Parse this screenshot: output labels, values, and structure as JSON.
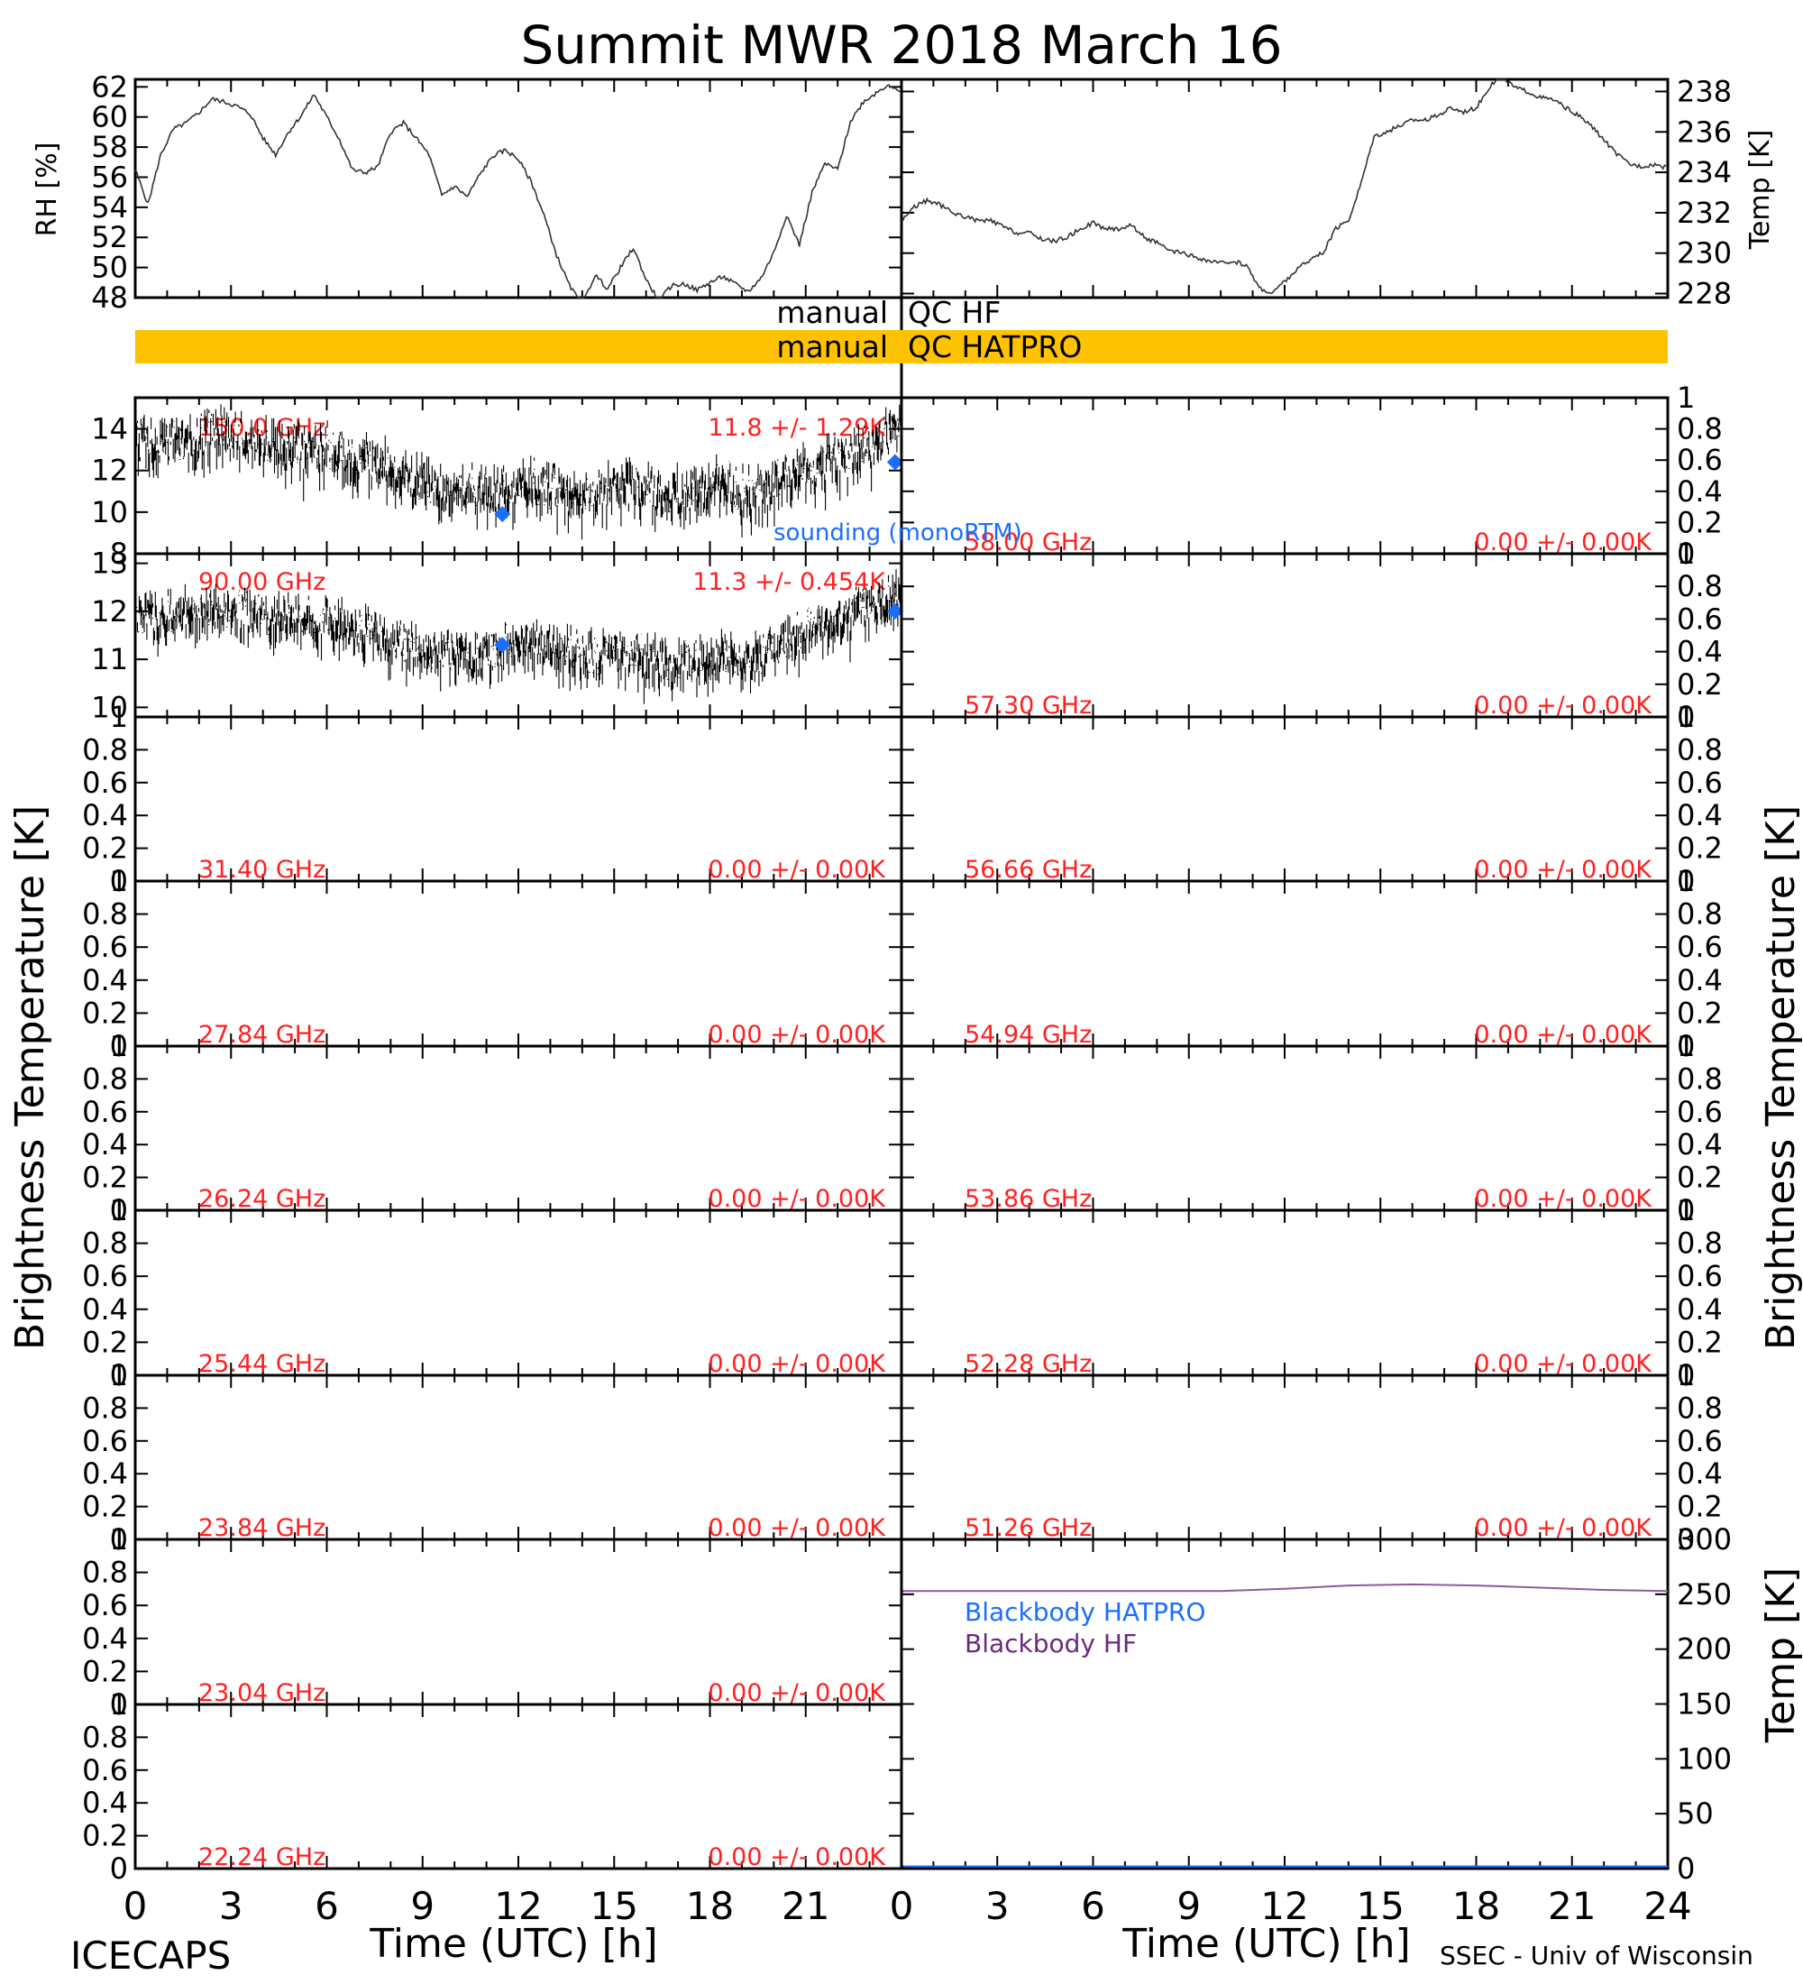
{
  "title": "Summit MWR 2018 March 16",
  "footer": {
    "left": "ICECAPS",
    "right": "SSEC - Univ of Wisconsin"
  },
  "axis_labels": {
    "time": "Time (UTC) [h]",
    "brightness": "Brightness Temperature [K]",
    "rh": "RH [%]",
    "temp": "Temp [K]"
  },
  "qc": {
    "label": "manual",
    "hf": "QC HF",
    "hatpro": "QC HATPRO"
  },
  "legend": {
    "sounding": "sounding (monoRTM)",
    "bb_hatpro": "Blackbody HATPRO",
    "bb_hf": "Blackbody HF"
  },
  "colors": {
    "label_red": "#ff2020",
    "sounding_blue": "#1a6eff",
    "qc_bar": "#ffc200",
    "bb_hf": "#8e5a9e",
    "bb_hatpro": "#1a6eff"
  },
  "chart_data": [
    {
      "type": "line",
      "id": "rh",
      "ylabel": "RH [%]",
      "xlim": [
        0,
        24
      ],
      "ylim": [
        48,
        62.5
      ],
      "yticks": [
        48,
        50,
        52,
        54,
        56,
        58,
        60,
        62
      ],
      "x": [
        0,
        0.4,
        0.8,
        1.2,
        1.6,
        2.0,
        2.4,
        2.8,
        3.2,
        3.6,
        4.0,
        4.4,
        4.8,
        5.2,
        5.6,
        6.0,
        6.4,
        6.8,
        7.2,
        7.6,
        8.0,
        8.4,
        8.8,
        9.2,
        9.6,
        10.0,
        10.4,
        10.8,
        11.2,
        11.6,
        12.0,
        12.4,
        12.8,
        13.2,
        13.6,
        14.0,
        14.4,
        14.8,
        15.2,
        15.6,
        16.0,
        16.4,
        16.8,
        17.2,
        17.6,
        18.0,
        18.4,
        18.8,
        19.2,
        19.6,
        20.0,
        20.4,
        20.8,
        21.2,
        21.6,
        22.0,
        22.4,
        22.8,
        23.2,
        23.6,
        24.0
      ],
      "y": [
        56.5,
        54.2,
        57.5,
        59.2,
        59.6,
        60.3,
        61.2,
        61.0,
        60.7,
        60.2,
        58.6,
        57.5,
        59.0,
        60.1,
        61.5,
        60.0,
        58.5,
        56.5,
        56.3,
        56.7,
        59.0,
        59.6,
        58.6,
        57.5,
        54.8,
        55.4,
        54.7,
        56.2,
        57.4,
        57.8,
        57.2,
        55.7,
        53.5,
        50.8,
        48.8,
        47.5,
        49.5,
        48.6,
        50.0,
        51.3,
        49.2,
        47.8,
        48.8,
        48.9,
        48.5,
        49.0,
        49.4,
        48.9,
        48.4,
        49.3,
        51.0,
        53.5,
        51.5,
        55.0,
        56.9,
        56.5,
        59.7,
        61.0,
        61.6,
        62.2,
        61.5
      ]
    },
    {
      "type": "line",
      "id": "air_temp",
      "ylabel": "Temp [K]",
      "xlim": [
        0,
        24
      ],
      "ylim": [
        227.8,
        238.6
      ],
      "yticks": [
        228,
        230,
        232,
        234,
        236,
        238
      ],
      "x": [
        0,
        0.4,
        0.8,
        1.2,
        1.6,
        2.0,
        2.4,
        2.8,
        3.2,
        3.6,
        4.0,
        4.4,
        4.8,
        5.2,
        5.6,
        6.0,
        6.4,
        6.8,
        7.2,
        7.6,
        8.0,
        8.4,
        8.8,
        9.2,
        9.6,
        10.0,
        10.4,
        10.8,
        11.2,
        11.6,
        12.0,
        12.4,
        12.8,
        13.2,
        13.6,
        14.0,
        14.4,
        14.8,
        15.2,
        15.6,
        16.0,
        16.4,
        16.8,
        17.2,
        17.6,
        18.0,
        18.4,
        18.8,
        19.2,
        19.6,
        20.0,
        20.4,
        20.8,
        21.2,
        21.6,
        22.0,
        22.4,
        22.8,
        23.2,
        23.6,
        24.0
      ],
      "y": [
        231.6,
        232.3,
        232.6,
        232.4,
        232.0,
        231.8,
        231.6,
        231.6,
        231.3,
        231.0,
        231.0,
        230.7,
        230.6,
        230.8,
        231.2,
        231.5,
        231.2,
        231.2,
        231.4,
        230.8,
        230.5,
        230.1,
        230.0,
        229.8,
        229.6,
        229.5,
        229.6,
        229.4,
        228.3,
        228.0,
        228.6,
        229.2,
        229.7,
        230.0,
        231.2,
        231.6,
        233.5,
        235.8,
        236.0,
        236.3,
        236.6,
        236.6,
        236.8,
        237.2,
        237.0,
        237.2,
        238.2,
        238.8,
        238.2,
        238.0,
        237.7,
        237.6,
        237.2,
        236.8,
        236.3,
        235.6,
        234.9,
        234.4,
        234.3,
        234.4,
        234.2
      ]
    },
    {
      "type": "scatter",
      "id": "tb_150",
      "freq": "150.0 GHz",
      "stat": "11.8 +/- 1.29K",
      "xlim": [
        0,
        24
      ],
      "ylim": [
        8,
        15.5
      ],
      "yticks": [
        8,
        10,
        12,
        14
      ],
      "x": [
        0,
        0.8,
        1.6,
        2.4,
        3.2,
        4.0,
        4.8,
        5.6,
        6.4,
        7.2,
        8.0,
        8.8,
        9.6,
        10.4,
        11.2,
        12.0,
        12.8,
        13.6,
        14.4,
        15.2,
        16.0,
        16.8,
        17.6,
        18.4,
        19.2,
        20.0,
        20.8,
        21.6,
        22.4,
        23.2,
        24.0
      ],
      "y": [
        13.2,
        13.5,
        13.4,
        13.6,
        13.8,
        13.2,
        13.0,
        12.9,
        12.7,
        12.5,
        12.0,
        11.4,
        11.0,
        10.9,
        11.0,
        11.3,
        11.1,
        10.9,
        10.8,
        11.3,
        11.1,
        10.8,
        11.0,
        11.3,
        10.7,
        11.2,
        11.8,
        12.2,
        12.6,
        13.3,
        14.0
      ],
      "spread": 0.9,
      "sounding": {
        "x": [
          11.5,
          23.8
        ],
        "y": [
          9.9,
          12.4
        ]
      }
    },
    {
      "type": "scatter",
      "id": "tb_90",
      "freq": "90.00 GHz",
      "stat": "11.3 +/- 0.454K",
      "xlim": [
        0,
        24
      ],
      "ylim": [
        9.8,
        13.2
      ],
      "yticks": [
        10,
        11,
        12,
        13
      ],
      "x": [
        0,
        0.8,
        1.6,
        2.4,
        3.2,
        4.0,
        4.8,
        5.6,
        6.4,
        7.2,
        8.0,
        8.8,
        9.6,
        10.4,
        11.2,
        12.0,
        12.8,
        13.6,
        14.4,
        15.2,
        16.0,
        16.8,
        17.6,
        18.4,
        19.2,
        20.0,
        20.8,
        21.6,
        22.4,
        23.2,
        24.0
      ],
      "y": [
        11.8,
        11.9,
        11.9,
        12.0,
        12.0,
        11.8,
        11.9,
        11.8,
        11.7,
        11.5,
        11.4,
        11.2,
        11.1,
        11.0,
        11.1,
        11.3,
        11.3,
        11.2,
        11.0,
        11.1,
        11.0,
        10.8,
        10.9,
        11.0,
        10.9,
        11.2,
        11.5,
        11.7,
        11.9,
        12.2,
        12.3
      ],
      "spread": 0.35,
      "sounding": {
        "x": [
          11.5,
          23.8
        ],
        "y": [
          11.3,
          12.0
        ]
      }
    },
    {
      "type": "line",
      "id": "tb_58000",
      "freq": "58.00 GHz",
      "stat": "0.00 +/- 0.00K",
      "xlim": [
        0,
        24
      ],
      "ylim": [
        0,
        1
      ],
      "yticks": [
        0.0,
        0.2,
        0.4,
        0.6,
        0.8,
        1.0
      ]
    },
    {
      "type": "line",
      "id": "tb_57300",
      "freq": "57.30 GHz",
      "stat": "0.00 +/- 0.00K",
      "xlim": [
        0,
        24
      ],
      "ylim": [
        0,
        1
      ],
      "yticks": [
        0.0,
        0.2,
        0.4,
        0.6,
        0.8,
        1.0
      ]
    },
    {
      "type": "line",
      "id": "tb_31400",
      "freq": "31.40 GHz",
      "stat": "0.00 +/- 0.00K",
      "xlim": [
        0,
        24
      ],
      "ylim": [
        0,
        1
      ],
      "yticks": [
        0.0,
        0.2,
        0.4,
        0.6,
        0.8,
        1.0
      ]
    },
    {
      "type": "line",
      "id": "tb_56660",
      "freq": "56.66 GHz",
      "stat": "0.00 +/- 0.00K",
      "xlim": [
        0,
        24
      ],
      "ylim": [
        0,
        1
      ],
      "yticks": [
        0.0,
        0.2,
        0.4,
        0.6,
        0.8,
        1.0
      ]
    },
    {
      "type": "line",
      "id": "tb_27840",
      "freq": "27.84 GHz",
      "stat": "0.00 +/- 0.00K",
      "xlim": [
        0,
        24
      ],
      "ylim": [
        0,
        1
      ],
      "yticks": [
        0.0,
        0.2,
        0.4,
        0.6,
        0.8,
        1.0
      ]
    },
    {
      "type": "line",
      "id": "tb_54940",
      "freq": "54.94 GHz",
      "stat": "0.00 +/- 0.00K",
      "xlim": [
        0,
        24
      ],
      "ylim": [
        0,
        1
      ],
      "yticks": [
        0.0,
        0.2,
        0.4,
        0.6,
        0.8,
        1.0
      ]
    },
    {
      "type": "line",
      "id": "tb_26240",
      "freq": "26.24 GHz",
      "stat": "0.00 +/- 0.00K",
      "xlim": [
        0,
        24
      ],
      "ylim": [
        0,
        1
      ],
      "yticks": [
        0.0,
        0.2,
        0.4,
        0.6,
        0.8,
        1.0
      ]
    },
    {
      "type": "line",
      "id": "tb_53860",
      "freq": "53.86 GHz",
      "stat": "0.00 +/- 0.00K",
      "xlim": [
        0,
        24
      ],
      "ylim": [
        0,
        1
      ],
      "yticks": [
        0.0,
        0.2,
        0.4,
        0.6,
        0.8,
        1.0
      ]
    },
    {
      "type": "line",
      "id": "tb_25440",
      "freq": "25.44 GHz",
      "stat": "0.00 +/- 0.00K",
      "xlim": [
        0,
        24
      ],
      "ylim": [
        0,
        1
      ],
      "yticks": [
        0.0,
        0.2,
        0.4,
        0.6,
        0.8,
        1.0
      ]
    },
    {
      "type": "line",
      "id": "tb_52280",
      "freq": "52.28 GHz",
      "stat": "0.00 +/- 0.00K",
      "xlim": [
        0,
        24
      ],
      "ylim": [
        0,
        1
      ],
      "yticks": [
        0.0,
        0.2,
        0.4,
        0.6,
        0.8,
        1.0
      ]
    },
    {
      "type": "line",
      "id": "tb_23840",
      "freq": "23.84 GHz",
      "stat": "0.00 +/- 0.00K",
      "xlim": [
        0,
        24
      ],
      "ylim": [
        0,
        1
      ],
      "yticks": [
        0.0,
        0.2,
        0.4,
        0.6,
        0.8,
        1.0
      ]
    },
    {
      "type": "line",
      "id": "tb_51260",
      "freq": "51.26 GHz",
      "stat": "0.00 +/- 0.00K",
      "xlim": [
        0,
        24
      ],
      "ylim": [
        0,
        1
      ],
      "yticks": [
        0.0,
        0.2,
        0.4,
        0.6,
        0.8,
        1.0
      ]
    },
    {
      "type": "line",
      "id": "tb_23040",
      "freq": "23.04 GHz",
      "stat": "0.00 +/- 0.00K",
      "xlim": [
        0,
        24
      ],
      "ylim": [
        0,
        1
      ],
      "yticks": [
        0.0,
        0.2,
        0.4,
        0.6,
        0.8,
        1.0
      ]
    },
    {
      "type": "line",
      "id": "tb_22240",
      "freq": "22.24 GHz",
      "stat": "0.00 +/- 0.00K",
      "xlim": [
        0,
        24
      ],
      "ylim": [
        0,
        1
      ],
      "yticks": [
        0.0,
        0.2,
        0.4,
        0.6,
        0.8,
        1.0
      ]
    },
    {
      "type": "line",
      "id": "blackbody",
      "ylabel": "Temp [K]",
      "xlim": [
        0,
        24
      ],
      "ylim": [
        0,
        300
      ],
      "yticks": [
        0,
        50,
        100,
        150,
        200,
        250,
        300
      ],
      "x": [
        0,
        2,
        4,
        6,
        8,
        10,
        12,
        14,
        16,
        18,
        20,
        22,
        24
      ],
      "series": [
        {
          "name": "Blackbody HF",
          "color": "#8e5a9e",
          "values": [
            253,
            253,
            253,
            253,
            253,
            253,
            255,
            258,
            259,
            258,
            256,
            254,
            253
          ]
        },
        {
          "name": "Blackbody HATPRO",
          "color": "#1a6eff",
          "values": [
            2,
            2,
            2,
            2,
            2,
            2,
            2,
            2,
            2,
            2,
            2,
            2,
            2
          ]
        }
      ]
    }
  ],
  "xticks": [
    0,
    3,
    6,
    9,
    12,
    15,
    18,
    21,
    24
  ],
  "xtick_labels_left": [
    "0",
    "3",
    "6",
    "9",
    "12",
    "15",
    "18",
    "21"
  ],
  "xtick_labels_right": [
    "0",
    "3",
    "6",
    "9",
    "12",
    "15",
    "18",
    "21",
    "24"
  ]
}
